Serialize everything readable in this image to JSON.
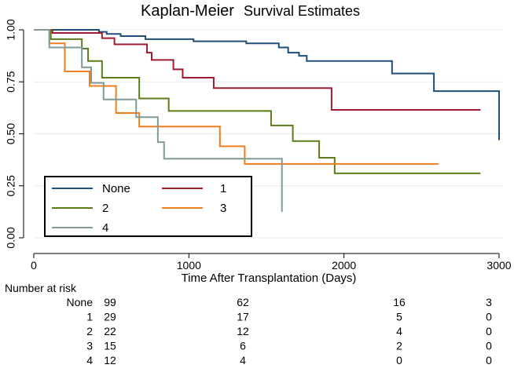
{
  "chart_data": {
    "type": "line",
    "title": "Kaplan-Meier Survival Estimates",
    "xlabel": "Time After Transplantation (Days)",
    "ylabel": "",
    "xlim": [
      0,
      3000
    ],
    "ylim": [
      0,
      1
    ],
    "x_ticks": [
      "0",
      "1000",
      "2000",
      "3000"
    ],
    "y_ticks": [
      "0.00",
      "0.25",
      "0.50",
      "0.75",
      "1.00"
    ],
    "grid": true,
    "legend_position": "bottom-left",
    "series": [
      {
        "name": "None",
        "color": "#1f4e79",
        "steps": [
          [
            0,
            1.0
          ],
          [
            420,
            0.99
          ],
          [
            470,
            0.98
          ],
          [
            560,
            0.97
          ],
          [
            720,
            0.955
          ],
          [
            1030,
            0.945
          ],
          [
            1370,
            0.935
          ],
          [
            1580,
            0.915
          ],
          [
            1640,
            0.89
          ],
          [
            1710,
            0.875
          ],
          [
            1760,
            0.85
          ],
          [
            2310,
            0.79
          ],
          [
            2580,
            0.705
          ],
          [
            3000,
            0.47
          ]
        ]
      },
      {
        "name": "1",
        "color": "#9e1b32",
        "steps": [
          [
            0,
            1.0
          ],
          [
            120,
            0.985
          ],
          [
            440,
            0.96
          ],
          [
            520,
            0.93
          ],
          [
            730,
            0.89
          ],
          [
            760,
            0.855
          ],
          [
            900,
            0.81
          ],
          [
            960,
            0.77
          ],
          [
            1160,
            0.72
          ],
          [
            1920,
            0.615
          ],
          [
            2880,
            0.615
          ]
        ]
      },
      {
        "name": "2",
        "color": "#5a7d1a",
        "steps": [
          [
            0,
            1.0
          ],
          [
            110,
            0.955
          ],
          [
            310,
            0.91
          ],
          [
            350,
            0.85
          ],
          [
            440,
            0.77
          ],
          [
            680,
            0.67
          ],
          [
            870,
            0.61
          ],
          [
            1530,
            0.54
          ],
          [
            1670,
            0.465
          ],
          [
            1840,
            0.385
          ],
          [
            1940,
            0.31
          ],
          [
            2880,
            0.31
          ]
        ]
      },
      {
        "name": "3",
        "color": "#f07c1a",
        "steps": [
          [
            0,
            1.0
          ],
          [
            100,
            0.935
          ],
          [
            200,
            0.8
          ],
          [
            360,
            0.73
          ],
          [
            530,
            0.6
          ],
          [
            680,
            0.535
          ],
          [
            1200,
            0.44
          ],
          [
            1360,
            0.355
          ],
          [
            2610,
            0.355
          ]
        ]
      },
      {
        "name": "4",
        "color": "#7f9a98",
        "steps": [
          [
            0,
            1.0
          ],
          [
            100,
            0.915
          ],
          [
            310,
            0.82
          ],
          [
            370,
            0.745
          ],
          [
            450,
            0.665
          ],
          [
            660,
            0.58
          ],
          [
            800,
            0.46
          ],
          [
            840,
            0.38
          ],
          [
            1600,
            0.38
          ],
          [
            1600,
            0.25
          ],
          [
            1600,
            0.125
          ]
        ]
      }
    ],
    "risk_table": {
      "title": "Number at risk",
      "times": [
        0,
        1000,
        2000,
        3000
      ],
      "rows": [
        {
          "label": "None",
          "values": [
            "99",
            "62",
            "16",
            "3"
          ]
        },
        {
          "label": "1",
          "values": [
            "29",
            "17",
            "5",
            "0"
          ]
        },
        {
          "label": "2",
          "values": [
            "22",
            "12",
            "4",
            "0"
          ]
        },
        {
          "label": "3",
          "values": [
            "15",
            "6",
            "2",
            "0"
          ]
        },
        {
          "label": "4",
          "values": [
            "12",
            "4",
            "0",
            "0"
          ]
        }
      ]
    }
  }
}
